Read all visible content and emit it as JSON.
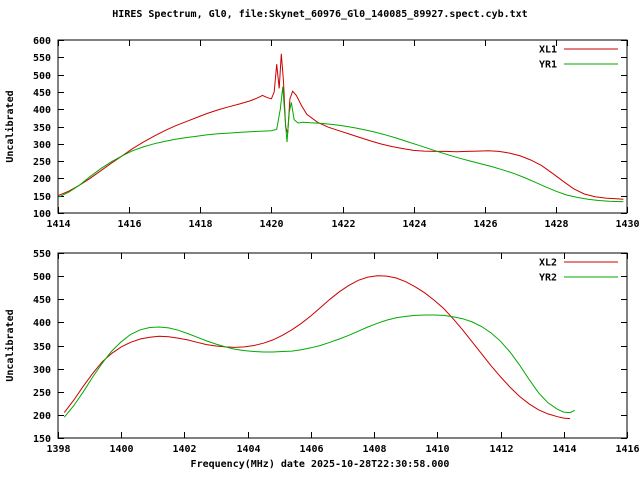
{
  "title": "HIRES Spectrum, Gl0, file:Skynet_60976_Gl0_140085_89927.spect.cyb.txt",
  "xlabel": "Frequency(MHz) date 2025-10-28T22:30:58.000",
  "colors": {
    "red": "#cc0000",
    "green": "#00aa00",
    "axis": "#000000",
    "background": "#ffffff"
  },
  "chart_data": [
    {
      "type": "line",
      "ylabel": "Uncalibrated",
      "xlim": [
        1414,
        1430
      ],
      "ylim": [
        100,
        600
      ],
      "xticks": [
        1414,
        1416,
        1418,
        1420,
        1422,
        1424,
        1426,
        1428,
        1430
      ],
      "yticks": [
        100,
        150,
        200,
        250,
        300,
        350,
        400,
        450,
        500,
        550,
        600
      ],
      "grid": false,
      "legend_position": "top-right",
      "series": [
        {
          "name": "XL1",
          "color": "#cc0000",
          "x": [
            1414.0,
            1414.3,
            1414.6,
            1414.9,
            1415.2,
            1415.5,
            1415.8,
            1416.1,
            1416.4,
            1416.7,
            1417.0,
            1417.3,
            1417.6,
            1417.9,
            1418.2,
            1418.5,
            1418.8,
            1419.1,
            1419.4,
            1419.6,
            1419.75,
            1419.9,
            1420.0,
            1420.08,
            1420.15,
            1420.22,
            1420.28,
            1420.34,
            1420.4,
            1420.46,
            1420.52,
            1420.6,
            1420.7,
            1420.85,
            1421.0,
            1421.3,
            1421.6,
            1421.9,
            1422.2,
            1422.5,
            1422.8,
            1423.1,
            1423.4,
            1423.7,
            1424.0,
            1424.3,
            1424.6,
            1424.9,
            1425.2,
            1425.5,
            1425.8,
            1426.1,
            1426.4,
            1426.7,
            1427.0,
            1427.3,
            1427.6,
            1427.9,
            1428.2,
            1428.5,
            1428.8,
            1429.1,
            1429.4,
            1429.7,
            1429.9
          ],
          "y": [
            150,
            163,
            180,
            200,
            222,
            244,
            265,
            286,
            305,
            322,
            338,
            352,
            364,
            376,
            388,
            398,
            407,
            415,
            424,
            432,
            440,
            433,
            430,
            450,
            530,
            460,
            560,
            480,
            350,
            330,
            430,
            452,
            440,
            410,
            385,
            362,
            348,
            338,
            328,
            318,
            308,
            299,
            292,
            286,
            281,
            279,
            278,
            278,
            277,
            278,
            279,
            280,
            278,
            273,
            265,
            253,
            237,
            215,
            192,
            170,
            155,
            147,
            143,
            141,
            140
          ]
        },
        {
          "name": "YR1",
          "color": "#00aa00",
          "x": [
            1414.0,
            1414.3,
            1414.6,
            1414.9,
            1415.2,
            1415.5,
            1415.8,
            1416.1,
            1416.4,
            1416.7,
            1417.0,
            1417.3,
            1417.6,
            1417.9,
            1418.2,
            1418.5,
            1418.8,
            1419.1,
            1419.4,
            1419.7,
            1420.0,
            1420.15,
            1420.25,
            1420.32,
            1420.38,
            1420.44,
            1420.5,
            1420.56,
            1420.64,
            1420.75,
            1420.9,
            1421.1,
            1421.4,
            1421.7,
            1422.0,
            1422.3,
            1422.6,
            1422.9,
            1423.2,
            1423.5,
            1423.8,
            1424.1,
            1424.4,
            1424.7,
            1425.0,
            1425.3,
            1425.6,
            1425.9,
            1426.2,
            1426.5,
            1426.8,
            1427.1,
            1427.4,
            1427.7,
            1428.0,
            1428.3,
            1428.6,
            1428.9,
            1429.2,
            1429.5,
            1429.8,
            1429.9
          ],
          "y": [
            145,
            160,
            180,
            205,
            228,
            248,
            265,
            280,
            291,
            300,
            307,
            313,
            318,
            322,
            326,
            329,
            331,
            333,
            335,
            336,
            338,
            342,
            400,
            465,
            380,
            305,
            390,
            420,
            370,
            360,
            362,
            361,
            359,
            356,
            352,
            347,
            341,
            334,
            326,
            317,
            307,
            297,
            287,
            277,
            267,
            258,
            250,
            242,
            234,
            225,
            215,
            203,
            190,
            176,
            163,
            152,
            145,
            140,
            136,
            134,
            133,
            133
          ]
        }
      ]
    },
    {
      "type": "line",
      "ylabel": "Uncalibrated",
      "xlim": [
        1398,
        1416
      ],
      "ylim": [
        150,
        550
      ],
      "xticks": [
        1398,
        1400,
        1402,
        1404,
        1406,
        1408,
        1410,
        1412,
        1414,
        1416
      ],
      "yticks": [
        150,
        200,
        250,
        300,
        350,
        400,
        450,
        500,
        550
      ],
      "grid": false,
      "legend_position": "top-right",
      "series": [
        {
          "name": "XL2",
          "color": "#cc0000",
          "x": [
            1398.2,
            1398.5,
            1398.8,
            1399.1,
            1399.4,
            1399.7,
            1400.0,
            1400.3,
            1400.6,
            1400.9,
            1401.2,
            1401.5,
            1401.8,
            1402.1,
            1402.4,
            1402.7,
            1403.0,
            1403.3,
            1403.6,
            1403.9,
            1404.2,
            1404.5,
            1404.8,
            1405.1,
            1405.4,
            1405.7,
            1406.0,
            1406.3,
            1406.6,
            1406.9,
            1407.2,
            1407.5,
            1407.8,
            1408.1,
            1408.4,
            1408.7,
            1409.0,
            1409.3,
            1409.6,
            1409.9,
            1410.2,
            1410.5,
            1410.8,
            1411.1,
            1411.4,
            1411.7,
            1412.0,
            1412.3,
            1412.6,
            1412.9,
            1413.2,
            1413.5,
            1413.8,
            1414.0,
            1414.2
          ],
          "y": [
            205,
            232,
            262,
            290,
            315,
            333,
            347,
            357,
            364,
            368,
            370,
            369,
            366,
            362,
            357,
            352,
            349,
            347,
            346,
            347,
            350,
            355,
            362,
            372,
            384,
            398,
            414,
            432,
            450,
            466,
            480,
            491,
            498,
            501,
            500,
            496,
            488,
            477,
            464,
            448,
            430,
            408,
            384,
            358,
            332,
            306,
            282,
            260,
            240,
            224,
            211,
            202,
            196,
            193,
            192
          ]
        },
        {
          "name": "YR2",
          "color": "#00aa00",
          "x": [
            1398.2,
            1398.5,
            1398.8,
            1399.1,
            1399.4,
            1399.7,
            1400.0,
            1400.3,
            1400.6,
            1400.9,
            1401.2,
            1401.5,
            1401.8,
            1402.1,
            1402.4,
            1402.7,
            1403.0,
            1403.3,
            1403.6,
            1403.9,
            1404.2,
            1404.5,
            1404.8,
            1405.1,
            1405.4,
            1405.7,
            1406.0,
            1406.3,
            1406.6,
            1406.9,
            1407.2,
            1407.5,
            1407.8,
            1408.1,
            1408.4,
            1408.7,
            1409.0,
            1409.3,
            1409.6,
            1409.9,
            1410.2,
            1410.5,
            1410.8,
            1411.1,
            1411.4,
            1411.7,
            1412.0,
            1412.3,
            1412.6,
            1412.9,
            1413.2,
            1413.5,
            1413.8,
            1414.0,
            1414.2,
            1414.35
          ],
          "y": [
            195,
            220,
            250,
            282,
            312,
            338,
            358,
            374,
            384,
            389,
            390,
            388,
            383,
            376,
            368,
            360,
            353,
            347,
            342,
            339,
            337,
            336,
            336,
            337,
            338,
            341,
            345,
            350,
            357,
            364,
            372,
            381,
            390,
            398,
            405,
            410,
            413,
            415,
            416,
            416,
            415,
            412,
            408,
            401,
            391,
            377,
            359,
            336,
            308,
            277,
            248,
            226,
            212,
            206,
            205,
            210
          ]
        }
      ]
    }
  ]
}
